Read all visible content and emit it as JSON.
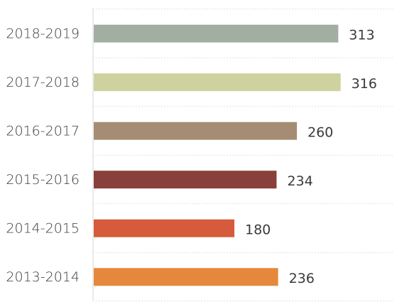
{
  "chart_data": {
    "type": "bar",
    "orientation": "horizontal",
    "title": "",
    "xlabel": "",
    "ylabel": "",
    "categories": [
      "2018-2019",
      "2017-2018",
      "2016-2017",
      "2015-2016",
      "2014-2015",
      "2013-2014"
    ],
    "values": [
      313,
      316,
      260,
      234,
      180,
      236
    ],
    "bar_colors": [
      "#a3aea2",
      "#cfd29e",
      "#a58d75",
      "#893f3a",
      "#d65a3c",
      "#e5883b"
    ],
    "xlim": [
      0,
      400
    ],
    "grid": true,
    "legend": "none",
    "data_labels": true
  }
}
